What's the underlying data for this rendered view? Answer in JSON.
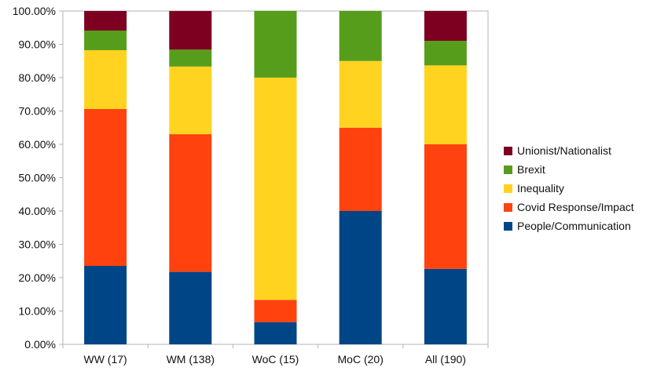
{
  "chart_data": {
    "type": "bar",
    "stacked": true,
    "categories": [
      "WW (17)",
      "WM (138)",
      "WoC (15)",
      "MoC (20)",
      "All (190)"
    ],
    "series": [
      {
        "name": "People/Communication",
        "color": "#004586",
        "values": [
          23.53,
          21.74,
          6.67,
          40.0,
          22.63
        ]
      },
      {
        "name": "Covid Response/Impact",
        "color": "#ff420e",
        "values": [
          47.06,
          41.3,
          6.67,
          25.0,
          37.37
        ]
      },
      {
        "name": "Inequality",
        "color": "#ffd320",
        "values": [
          17.65,
          20.29,
          66.67,
          20.0,
          23.68
        ]
      },
      {
        "name": "Brexit",
        "color": "#579d1c",
        "values": [
          5.88,
          5.07,
          20.0,
          15.0,
          7.37
        ]
      },
      {
        "name": "Unionist/Nationalist",
        "color": "#7e0021",
        "values": [
          5.88,
          11.59,
          0.0,
          0.0,
          8.95
        ]
      }
    ],
    "yticks": [
      "0.00%",
      "10.00%",
      "20.00%",
      "30.00%",
      "40.00%",
      "50.00%",
      "60.00%",
      "70.00%",
      "80.00%",
      "90.00%",
      "100.00%"
    ],
    "ylim": [
      0,
      100
    ],
    "legend_position": "right",
    "grid": false
  }
}
